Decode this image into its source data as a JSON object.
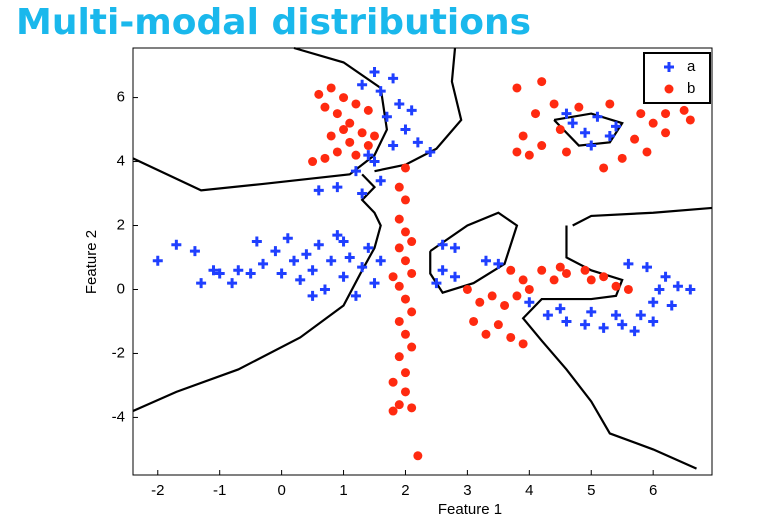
{
  "title": "Multi-modal distributions",
  "chart_data": {
    "type": "scatter",
    "xlabel": "Feature 1",
    "ylabel": "Feature 2",
    "xlim": [
      -2.4,
      6.95
    ],
    "ylim": [
      -5.8,
      7.55
    ],
    "xticks": [
      -2,
      -1,
      0,
      1,
      2,
      3,
      4,
      5,
      6
    ],
    "yticks": [
      -4,
      -2,
      0,
      2,
      4,
      6
    ],
    "legend": "upper right",
    "series": [
      {
        "name": "a",
        "color": "#1f3fff",
        "marker": "plus",
        "x": [
          -2,
          -1.7,
          -1.4,
          -1.3,
          -1.1,
          -1,
          -0.8,
          -0.7,
          -0.4,
          -0.3,
          -0.1,
          0,
          0.1,
          0.2,
          0.3,
          0.4,
          0.5,
          0.6,
          0.7,
          0.8,
          0.9,
          1,
          1.1,
          1.2,
          1.3,
          1.4,
          1.5,
          1.6,
          0.5,
          1.0,
          -0.5,
          1.5,
          1.3,
          1.6,
          1.8,
          1.9,
          1.7,
          2,
          2.2,
          1.8,
          1.5,
          1.2,
          1.6,
          0.9,
          1.3,
          0.6,
          2.4,
          2.1,
          1.4,
          2.6,
          2.8,
          2.6,
          2.8,
          3.3,
          3.5,
          2.5,
          4.7,
          4.9,
          5.1,
          5.3,
          5.0,
          4.6,
          5.4,
          4,
          4.3,
          4.6,
          4.9,
          5.2,
          5.5,
          5.8,
          6,
          6.1,
          6.2,
          6.4,
          6.6,
          5.9,
          5.6,
          6.3,
          5.7,
          5,
          4.5,
          5.4,
          6
        ],
        "y": [
          0.9,
          1.4,
          1.2,
          0.2,
          0.6,
          0.5,
          0.2,
          0.6,
          1.5,
          0.8,
          1.2,
          0.5,
          1.6,
          0.9,
          0.3,
          1.1,
          0.6,
          1.4,
          0,
          0.9,
          1.7,
          0.4,
          1,
          -0.2,
          0.7,
          1.3,
          0.2,
          0.9,
          -0.2,
          1.5,
          0.5,
          6.8,
          6.4,
          6.2,
          6.6,
          5.8,
          5.4,
          5,
          4.6,
          4.5,
          4,
          3.7,
          3.4,
          3.2,
          3,
          3.1,
          4.3,
          5.6,
          4.2,
          1.4,
          1.3,
          0.6,
          0.4,
          0.9,
          0.8,
          0.2,
          5.2,
          4.9,
          5.4,
          4.8,
          4.5,
          5.5,
          5.1,
          -0.4,
          -0.8,
          -1,
          -1.1,
          -1.2,
          -1.1,
          -0.8,
          -0.4,
          0,
          0.4,
          0.1,
          0,
          0.7,
          0.8,
          -0.5,
          -1.3,
          -0.7,
          -0.6,
          -0.8,
          -1
        ]
      },
      {
        "name": "b",
        "color": "#ff2a10",
        "marker": "dot",
        "x": [
          0.6,
          0.8,
          1,
          1.2,
          0.9,
          1.1,
          1.3,
          1.4,
          1.2,
          0.9,
          0.7,
          0.5,
          1.5,
          1,
          0.7,
          1.4,
          0.8,
          1.1,
          2,
          1.9,
          2,
          1.9,
          2,
          1.9,
          2,
          2.1,
          1.9,
          2,
          2.1,
          1.9,
          2,
          2.1,
          1.9,
          2,
          1.8,
          2,
          1.9,
          1.8,
          2.1,
          2.2,
          2.1,
          1.8,
          3.8,
          4.2,
          4.4,
          4.1,
          3.9,
          3.8,
          4.2,
          4.5,
          5.8,
          6,
          6.2,
          6.5,
          6.6,
          5.7,
          5.5,
          5.2,
          4.6,
          5.9,
          5.3,
          4.8,
          6.2,
          4,
          3,
          3.2,
          3.1,
          3.3,
          3.5,
          3.6,
          3.8,
          3.9,
          4.2,
          4.4,
          4.6,
          4.9,
          5.2,
          5.4,
          5.6,
          3.7,
          3.9,
          3.4,
          4,
          3.7,
          4.5,
          5
        ],
        "y": [
          6.1,
          6.3,
          6,
          5.8,
          5.5,
          5.2,
          4.9,
          4.5,
          4.2,
          4.3,
          4.1,
          4,
          4.8,
          5,
          5.7,
          5.6,
          4.8,
          4.6,
          3.8,
          3.2,
          2.8,
          2.2,
          1.8,
          1.3,
          0.9,
          0.5,
          0.1,
          -0.3,
          -0.7,
          -1,
          -1.4,
          -1.8,
          -2.1,
          -2.6,
          -2.9,
          -3.2,
          -3.6,
          -3.8,
          -3.7,
          -5.2,
          1.5,
          0.4,
          6.3,
          6.5,
          5.8,
          5.5,
          4.8,
          4.3,
          4.5,
          5,
          5.5,
          5.2,
          4.9,
          5.6,
          5.3,
          4.7,
          4.1,
          3.8,
          4.3,
          4.3,
          5.8,
          5.7,
          5.5,
          4.2,
          0,
          -0.4,
          -1,
          -1.4,
          -1.1,
          -0.5,
          -0.2,
          0.3,
          0.6,
          0.3,
          0.5,
          0.6,
          0.4,
          0.1,
          0,
          -1.5,
          -1.7,
          -0.2,
          0,
          0.6,
          0.7,
          0.3
        ]
      }
    ],
    "boundaries": [
      {
        "x": [
          -2.4,
          -1.3,
          -0.3,
          1.1,
          1.5,
          1.7,
          1.6,
          1.0,
          0.2
        ],
        "y": [
          4.1,
          3.1,
          3.3,
          3.6,
          4.2,
          5,
          6.3,
          7.1,
          7.55
        ]
      },
      {
        "x": [
          1.3,
          1.5,
          1.3,
          1.5,
          1.6,
          1.5,
          1.3,
          1.0,
          0.3,
          -0.7,
          -1.7,
          -2.4
        ],
        "y": [
          3.6,
          3.2,
          2.8,
          2.4,
          2,
          1.3,
          0.6,
          -0.5,
          -1.5,
          -2.5,
          -3.2,
          -3.8
        ]
      },
      {
        "x": [
          2.8,
          2.75,
          2.9,
          2.5,
          2.0,
          1.5
        ],
        "y": [
          7.55,
          6.5,
          5.3,
          4.4,
          3.9,
          3.7
        ]
      },
      {
        "x": [
          2.4,
          3,
          3.5,
          3.8,
          3.6,
          3.1,
          2.6,
          2.4,
          2.4
        ],
        "y": [
          1.2,
          2,
          2.4,
          2,
          0.8,
          0.2,
          -0.1,
          0.5,
          1.2
        ]
      },
      {
        "x": [
          4.4,
          5,
          5.5,
          5.3,
          4.8,
          4.4
        ],
        "y": [
          5.3,
          5.5,
          5.2,
          4.6,
          4.5,
          5.3
        ]
      },
      {
        "x": [
          4.7,
          5,
          6,
          6.95
        ],
        "y": [
          2,
          2.3,
          2.4,
          2.55
        ]
      },
      {
        "x": [
          4.6,
          4.6,
          5,
          5.5,
          5.4,
          5,
          4.2,
          3.9,
          4.2,
          4.6,
          5,
          5.3,
          6,
          6.7
        ],
        "y": [
          2.0,
          1.0,
          0.6,
          0.3,
          -0.2,
          -0.3,
          -0.3,
          -0.9,
          -1.6,
          -2.5,
          -3.5,
          -4.5,
          -5,
          -5.6
        ]
      }
    ]
  }
}
